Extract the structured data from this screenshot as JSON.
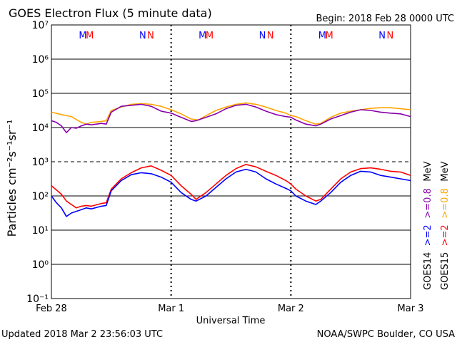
{
  "chart_data": {
    "type": "line",
    "title": "GOES Electron Flux (5 minute data)",
    "begin": "Begin: 2018 Feb 28 0000 UTC",
    "xlabel": "Universal Time",
    "ylabel": "Particles cm⁻²s⁻¹sr⁻¹",
    "y_scale": "log",
    "ylim_exp": [
      -1,
      7
    ],
    "ytick_labels": [
      "10⁻¹",
      "10⁰",
      "10¹",
      "10²",
      "10³",
      "10⁴",
      "10⁵",
      "10⁶",
      "10⁷"
    ],
    "x_range_hours": [
      0,
      72
    ],
    "x_tick_labels": [
      {
        "t": 0,
        "label": "Feb 28"
      },
      {
        "t": 24,
        "label": "Mar 1"
      },
      {
        "t": 48,
        "label": "Mar 2"
      },
      {
        "t": 72,
        "label": "Mar 3"
      }
    ],
    "threshold_exp": 3,
    "grid": true,
    "markers": [
      {
        "t": 6.3,
        "label": "M",
        "color": "#0000ff"
      },
      {
        "t": 7.7,
        "label": "M",
        "color": "#ff0000"
      },
      {
        "t": 18.3,
        "label": "N",
        "color": "#0000ff"
      },
      {
        "t": 19.9,
        "label": "N",
        "color": "#ff0000"
      },
      {
        "t": 30.3,
        "label": "M",
        "color": "#0000ff"
      },
      {
        "t": 31.7,
        "label": "M",
        "color": "#ff0000"
      },
      {
        "t": 42.3,
        "label": "N",
        "color": "#0000ff"
      },
      {
        "t": 43.9,
        "label": "N",
        "color": "#ff0000"
      },
      {
        "t": 54.3,
        "label": "M",
        "color": "#0000ff"
      },
      {
        "t": 55.7,
        "label": "M",
        "color": "#ff0000"
      },
      {
        "t": 66.3,
        "label": "N",
        "color": "#0000ff"
      },
      {
        "t": 67.9,
        "label": "N",
        "color": "#ff0000"
      }
    ],
    "series": [
      {
        "name": "GOES15 >=0.8 MeV",
        "color": "#ffa500",
        "log10_values": [
          [
            0,
            4.45
          ],
          [
            2,
            4.38
          ],
          [
            4,
            4.32
          ],
          [
            6,
            4.15
          ],
          [
            7,
            4.1
          ],
          [
            8,
            4.15
          ],
          [
            10,
            4.18
          ],
          [
            11,
            4.2
          ],
          [
            12,
            4.5
          ],
          [
            14,
            4.6
          ],
          [
            16,
            4.68
          ],
          [
            18,
            4.7
          ],
          [
            20,
            4.68
          ],
          [
            22,
            4.62
          ],
          [
            24,
            4.52
          ],
          [
            26,
            4.4
          ],
          [
            28,
            4.25
          ],
          [
            29.5,
            4.22
          ],
          [
            31,
            4.35
          ],
          [
            33,
            4.5
          ],
          [
            35,
            4.6
          ],
          [
            37,
            4.68
          ],
          [
            39,
            4.72
          ],
          [
            41,
            4.68
          ],
          [
            43,
            4.6
          ],
          [
            45,
            4.5
          ],
          [
            47,
            4.42
          ],
          [
            48,
            4.35
          ],
          [
            49,
            4.32
          ],
          [
            51,
            4.2
          ],
          [
            53,
            4.1
          ],
          [
            54,
            4.12
          ],
          [
            56,
            4.3
          ],
          [
            58,
            4.42
          ],
          [
            60,
            4.48
          ],
          [
            62,
            4.52
          ],
          [
            64,
            4.56
          ],
          [
            66,
            4.58
          ],
          [
            68,
            4.58
          ],
          [
            70,
            4.55
          ],
          [
            72,
            4.52
          ]
        ]
      },
      {
        "name": "GOES14 >=0.8 MeV",
        "color": "#8800aa",
        "log10_values": [
          [
            0,
            4.2
          ],
          [
            1,
            4.15
          ],
          [
            2,
            4.05
          ],
          [
            3,
            3.85
          ],
          [
            4,
            4.0
          ],
          [
            5,
            3.98
          ],
          [
            6,
            4.05
          ],
          [
            7,
            4.1
          ],
          [
            8,
            4.08
          ],
          [
            10,
            4.12
          ],
          [
            11,
            4.1
          ],
          [
            12,
            4.45
          ],
          [
            14,
            4.62
          ],
          [
            16,
            4.65
          ],
          [
            18,
            4.68
          ],
          [
            20,
            4.62
          ],
          [
            22,
            4.48
          ],
          [
            24,
            4.42
          ],
          [
            26,
            4.3
          ],
          [
            28,
            4.18
          ],
          [
            29,
            4.2
          ],
          [
            31,
            4.3
          ],
          [
            33,
            4.4
          ],
          [
            35,
            4.55
          ],
          [
            37,
            4.65
          ],
          [
            39,
            4.68
          ],
          [
            41,
            4.6
          ],
          [
            43,
            4.48
          ],
          [
            45,
            4.38
          ],
          [
            47,
            4.32
          ],
          [
            48,
            4.3
          ],
          [
            49,
            4.22
          ],
          [
            51,
            4.1
          ],
          [
            53,
            4.05
          ],
          [
            54,
            4.1
          ],
          [
            56,
            4.25
          ],
          [
            58,
            4.35
          ],
          [
            60,
            4.45
          ],
          [
            62,
            4.52
          ],
          [
            64,
            4.5
          ],
          [
            66,
            4.45
          ],
          [
            68,
            4.42
          ],
          [
            70,
            4.4
          ],
          [
            72,
            4.32
          ]
        ]
      },
      {
        "name": "GOES15 >=2 MeV",
        "color": "#ff0000",
        "log10_values": [
          [
            0,
            2.3
          ],
          [
            2,
            2.05
          ],
          [
            3,
            1.85
          ],
          [
            4,
            1.75
          ],
          [
            5,
            1.65
          ],
          [
            6,
            1.7
          ],
          [
            7,
            1.72
          ],
          [
            8,
            1.7
          ],
          [
            10,
            1.78
          ],
          [
            11,
            1.8
          ],
          [
            12,
            2.2
          ],
          [
            14,
            2.5
          ],
          [
            16,
            2.68
          ],
          [
            18,
            2.82
          ],
          [
            20,
            2.88
          ],
          [
            22,
            2.75
          ],
          [
            24,
            2.6
          ],
          [
            26,
            2.3
          ],
          [
            28,
            2.05
          ],
          [
            29,
            1.9
          ],
          [
            31,
            2.1
          ],
          [
            33,
            2.35
          ],
          [
            35,
            2.6
          ],
          [
            37,
            2.8
          ],
          [
            39,
            2.92
          ],
          [
            41,
            2.85
          ],
          [
            43,
            2.72
          ],
          [
            45,
            2.6
          ],
          [
            47,
            2.45
          ],
          [
            48,
            2.35
          ],
          [
            49,
            2.2
          ],
          [
            51,
            2.0
          ],
          [
            53,
            1.85
          ],
          [
            54,
            1.9
          ],
          [
            56,
            2.2
          ],
          [
            58,
            2.5
          ],
          [
            60,
            2.7
          ],
          [
            62,
            2.8
          ],
          [
            64,
            2.82
          ],
          [
            66,
            2.78
          ],
          [
            68,
            2.72
          ],
          [
            70,
            2.7
          ],
          [
            72,
            2.6
          ]
        ]
      },
      {
        "name": "GOES14 >=2 MeV",
        "color": "#0000ff",
        "log10_values": [
          [
            0,
            2.0
          ],
          [
            1,
            1.8
          ],
          [
            2,
            1.65
          ],
          [
            3,
            1.4
          ],
          [
            4,
            1.5
          ],
          [
            5,
            1.55
          ],
          [
            6,
            1.6
          ],
          [
            7,
            1.65
          ],
          [
            8,
            1.62
          ],
          [
            10,
            1.7
          ],
          [
            11,
            1.72
          ],
          [
            12,
            2.15
          ],
          [
            14,
            2.45
          ],
          [
            16,
            2.62
          ],
          [
            18,
            2.68
          ],
          [
            20,
            2.65
          ],
          [
            22,
            2.55
          ],
          [
            24,
            2.4
          ],
          [
            26,
            2.1
          ],
          [
            28,
            1.9
          ],
          [
            29,
            1.85
          ],
          [
            31,
            2.0
          ],
          [
            33,
            2.25
          ],
          [
            35,
            2.5
          ],
          [
            37,
            2.7
          ],
          [
            39,
            2.78
          ],
          [
            41,
            2.7
          ],
          [
            43,
            2.5
          ],
          [
            45,
            2.35
          ],
          [
            47,
            2.22
          ],
          [
            48,
            2.15
          ],
          [
            49,
            2.0
          ],
          [
            51,
            1.85
          ],
          [
            53,
            1.75
          ],
          [
            54,
            1.85
          ],
          [
            56,
            2.1
          ],
          [
            58,
            2.4
          ],
          [
            60,
            2.6
          ],
          [
            62,
            2.72
          ],
          [
            64,
            2.7
          ],
          [
            66,
            2.6
          ],
          [
            68,
            2.55
          ],
          [
            70,
            2.5
          ],
          [
            72,
            2.45
          ]
        ]
      }
    ],
    "legend": [
      {
        "text": "GOES14",
        "color": "#000000"
      },
      {
        "text": ">=2",
        "color": "#0000ff"
      },
      {
        "text": ">=0.8",
        "color": "#8800aa"
      },
      {
        "text": "MeV",
        "color": "#000000"
      },
      {
        "text": "GOES15",
        "color": "#000000"
      },
      {
        "text": ">=2",
        "color": "#ff0000"
      },
      {
        "text": ">=0.8",
        "color": "#ffa500"
      },
      {
        "text": "MeV",
        "color": "#000000"
      }
    ]
  },
  "footer": {
    "updated": "Updated 2018 Mar  2 23:56:03 UTC",
    "credit": "NOAA/SWPC Boulder, CO USA"
  }
}
